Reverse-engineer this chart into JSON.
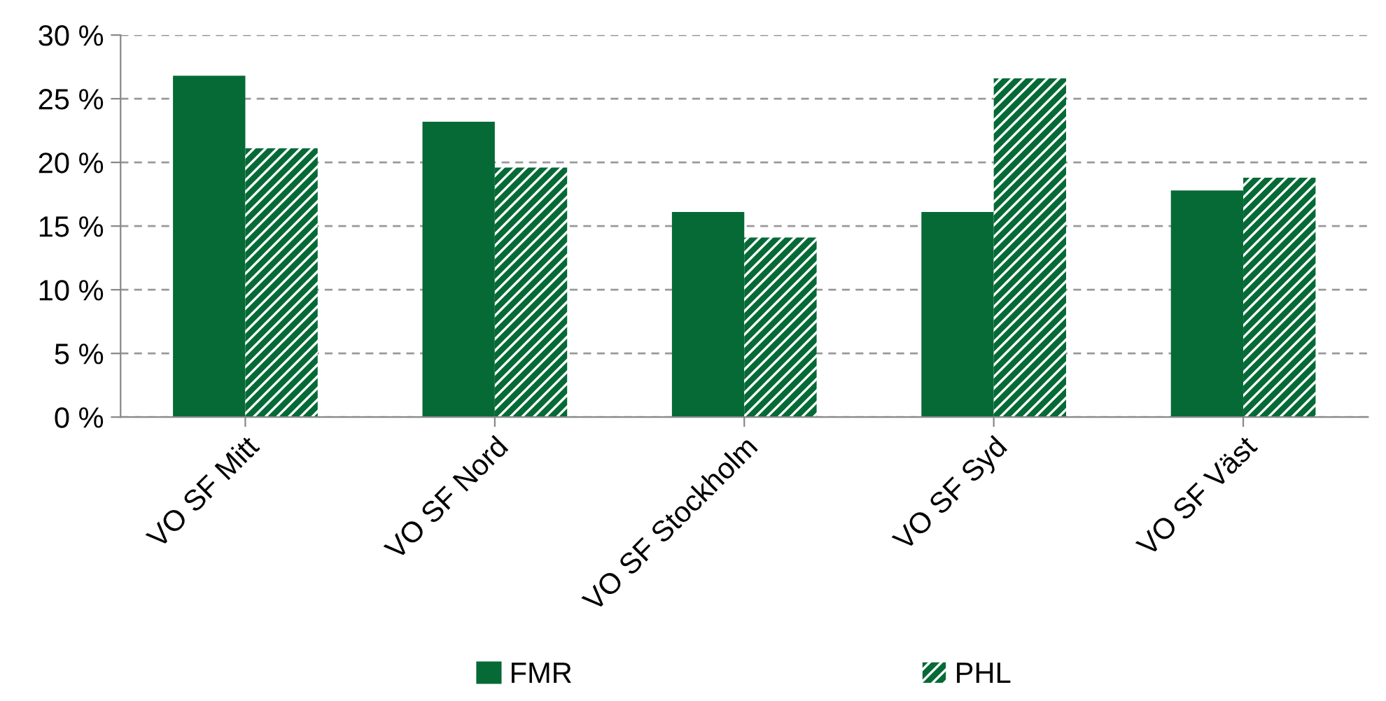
{
  "chart_data": {
    "type": "bar",
    "categories": [
      "VO SF Mitt",
      "VO SF Nord",
      "VO SF Stockholm",
      "VO SF Syd",
      "VO SF Väst"
    ],
    "series": [
      {
        "name": "FMR",
        "color": "#066a36",
        "values": [
          26.8,
          23.2,
          16.1,
          16.1,
          17.8
        ]
      },
      {
        "name": "PHL",
        "color": "#066a36",
        "values": [
          21.1,
          19.6,
          14.1,
          26.6,
          18.8
        ]
      }
    ],
    "ylim": [
      0,
      30
    ],
    "yticks": [
      {
        "value": 0,
        "label": "0 %"
      },
      {
        "value": 5,
        "label": "5 %"
      },
      {
        "value": 10,
        "label": "10 %"
      },
      {
        "value": 15,
        "label": "15 %"
      },
      {
        "value": 20,
        "label": "20 %"
      },
      {
        "value": 25,
        "label": "25 %"
      },
      {
        "value": 30,
        "label": "30 %"
      }
    ],
    "grid": "y",
    "legend": "bottom"
  }
}
